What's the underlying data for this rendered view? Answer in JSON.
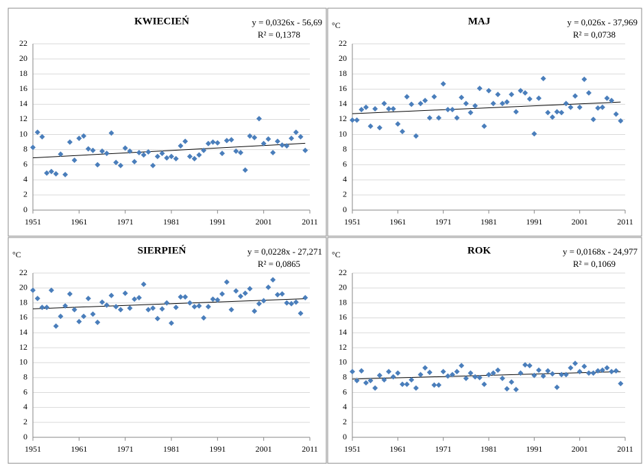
{
  "chart_data": [
    {
      "type": "scatter",
      "title": "KWIECIEŃ",
      "equation": "y = 0,0326x - 56,69",
      "r_squared": "R² = 0,1378",
      "trend": {
        "slope": 0.0326,
        "intercept": -56.69
      },
      "color": "#4a7ebb",
      "grid": true,
      "xlim": [
        1951,
        2011
      ],
      "ylim": [
        0,
        22
      ],
      "xticks": [
        1951,
        1961,
        1971,
        1981,
        1991,
        2001,
        2011
      ],
      "yticks": [
        0,
        2,
        4,
        6,
        8,
        10,
        12,
        14,
        16,
        18,
        20,
        22
      ],
      "x": [
        1951,
        1952,
        1953,
        1954,
        1955,
        1956,
        1957,
        1958,
        1959,
        1960,
        1961,
        1962,
        1963,
        1964,
        1965,
        1966,
        1967,
        1968,
        1969,
        1970,
        1971,
        1972,
        1973,
        1974,
        1975,
        1976,
        1977,
        1978,
        1979,
        1980,
        1981,
        1982,
        1983,
        1984,
        1985,
        1986,
        1987,
        1988,
        1989,
        1990,
        1991,
        1992,
        1993,
        1994,
        1995,
        1996,
        1997,
        1998,
        1999,
        2000,
        2001,
        2002,
        2003,
        2004,
        2005,
        2006,
        2007,
        2008,
        2009,
        2010
      ],
      "values": [
        8.3,
        10.3,
        9.7,
        4.9,
        5.1,
        4.8,
        7.4,
        4.7,
        9.0,
        6.6,
        9.5,
        9.8,
        8.1,
        7.9,
        6.0,
        7.8,
        7.5,
        10.2,
        6.3,
        5.9,
        8.2,
        7.8,
        6.4,
        7.6,
        7.3,
        7.7,
        5.9,
        7.1,
        7.5,
        6.9,
        7.1,
        6.8,
        8.5,
        9.1,
        7.1,
        6.8,
        7.3,
        7.9,
        8.8,
        9.0,
        8.9,
        7.5,
        9.2,
        9.3,
        7.8,
        7.6,
        5.3,
        9.8,
        9.6,
        12.1,
        8.8,
        9.4,
        7.6,
        9.1,
        8.6,
        8.5,
        9.5,
        10.3,
        9.7,
        7.9
      ]
    },
    {
      "type": "scatter",
      "title": "MAJ",
      "unit": "°C",
      "equation": "y = 0,026x - 37,969",
      "r_squared": "R² = 0,0738",
      "trend": {
        "slope": 0.026,
        "intercept": -37.969
      },
      "color": "#4a7ebb",
      "grid": true,
      "xlim": [
        1951,
        2011
      ],
      "ylim": [
        0,
        22
      ],
      "xticks": [
        1951,
        1961,
        1971,
        1981,
        1991,
        2001,
        2011
      ],
      "yticks": [
        0,
        2,
        4,
        6,
        8,
        10,
        12,
        14,
        16,
        18,
        20,
        22
      ],
      "x": [
        1951,
        1952,
        1953,
        1954,
        1955,
        1956,
        1957,
        1958,
        1959,
        1960,
        1961,
        1962,
        1963,
        1964,
        1965,
        1966,
        1967,
        1968,
        1969,
        1970,
        1971,
        1972,
        1973,
        1974,
        1975,
        1976,
        1977,
        1978,
        1979,
        1980,
        1981,
        1982,
        1983,
        1984,
        1985,
        1986,
        1987,
        1988,
        1989,
        1990,
        1991,
        1992,
        1993,
        1994,
        1995,
        1996,
        1997,
        1998,
        1999,
        2000,
        2001,
        2002,
        2003,
        2004,
        2005,
        2006,
        2007,
        2008,
        2009,
        2010
      ],
      "values": [
        11.9,
        11.9,
        13.3,
        13.6,
        11.1,
        13.4,
        10.9,
        14.1,
        13.4,
        13.4,
        11.4,
        10.4,
        15.0,
        14.0,
        9.8,
        14.1,
        14.5,
        12.2,
        15.0,
        12.2,
        16.7,
        13.3,
        13.3,
        12.2,
        14.9,
        14.1,
        12.9,
        13.8,
        16.1,
        11.1,
        15.8,
        14.1,
        15.3,
        14.1,
        14.3,
        15.3,
        13.0,
        15.8,
        15.5,
        14.7,
        10.1,
        14.8,
        17.4,
        12.9,
        12.3,
        13.0,
        12.9,
        14.1,
        13.6,
        15.1,
        13.6,
        17.3,
        15.5,
        12.0,
        13.5,
        13.6,
        14.8,
        14.5,
        12.7,
        11.8
      ]
    },
    {
      "type": "scatter",
      "title": "SIERPIEŃ",
      "unit": "°C",
      "equation": "y = 0,0228x - 27,271",
      "r_squared": "R² = 0,0865",
      "trend": {
        "slope": 0.0228,
        "intercept": -27.271
      },
      "color": "#4a7ebb",
      "grid": true,
      "xlim": [
        1951,
        2011
      ],
      "ylim": [
        0,
        22
      ],
      "xticks": [
        1951,
        1961,
        1971,
        1981,
        1991,
        2001,
        2011
      ],
      "yticks": [
        0,
        2,
        4,
        6,
        8,
        10,
        12,
        14,
        16,
        18,
        20,
        22
      ],
      "x": [
        1951,
        1952,
        1953,
        1954,
        1955,
        1956,
        1957,
        1958,
        1959,
        1960,
        1961,
        1962,
        1963,
        1964,
        1965,
        1966,
        1967,
        1968,
        1969,
        1970,
        1971,
        1972,
        1973,
        1974,
        1975,
        1976,
        1977,
        1978,
        1979,
        1980,
        1981,
        1982,
        1983,
        1984,
        1985,
        1986,
        1987,
        1988,
        1989,
        1990,
        1991,
        1992,
        1993,
        1994,
        1995,
        1996,
        1997,
        1998,
        1999,
        2000,
        2001,
        2002,
        2003,
        2004,
        2005,
        2006,
        2007,
        2008,
        2009,
        2010
      ],
      "values": [
        19.7,
        18.6,
        17.4,
        17.4,
        19.7,
        14.9,
        16.2,
        17.6,
        19.2,
        17.1,
        15.5,
        16.2,
        18.6,
        16.5,
        15.4,
        18.1,
        17.7,
        19.0,
        17.5,
        17.1,
        19.3,
        17.3,
        18.5,
        18.7,
        20.5,
        17.1,
        17.3,
        15.9,
        17.2,
        18.0,
        15.3,
        17.4,
        18.8,
        18.8,
        18.0,
        17.5,
        17.6,
        16.0,
        17.5,
        18.5,
        18.4,
        19.2,
        20.8,
        17.1,
        19.6,
        18.9,
        19.3,
        19.9,
        16.9,
        17.9,
        18.3,
        20.1,
        21.1,
        19.1,
        19.2,
        18.0,
        17.9,
        18.1,
        16.6,
        18.7
      ]
    },
    {
      "type": "scatter",
      "title": "ROK",
      "unit": "°C",
      "equation": "y = 0,0168x - 24,977",
      "r_squared": "R² = 0,1069",
      "trend": {
        "slope": 0.0168,
        "intercept": -24.977
      },
      "color": "#4a7ebb",
      "grid": true,
      "xlim": [
        1951,
        2011
      ],
      "ylim": [
        0,
        22
      ],
      "xticks": [
        1951,
        1961,
        1971,
        1981,
        1991,
        2001,
        2011
      ],
      "yticks": [
        0,
        2,
        4,
        6,
        8,
        10,
        12,
        14,
        16,
        18,
        20,
        22
      ],
      "x": [
        1951,
        1952,
        1953,
        1954,
        1955,
        1956,
        1957,
        1958,
        1959,
        1960,
        1961,
        1962,
        1963,
        1964,
        1965,
        1966,
        1967,
        1968,
        1969,
        1970,
        1971,
        1972,
        1973,
        1974,
        1975,
        1976,
        1977,
        1978,
        1979,
        1980,
        1981,
        1982,
        1983,
        1984,
        1985,
        1986,
        1987,
        1988,
        1989,
        1990,
        1991,
        1992,
        1993,
        1994,
        1995,
        1996,
        1997,
        1998,
        1999,
        2000,
        2001,
        2002,
        2003,
        2004,
        2005,
        2006,
        2007,
        2008,
        2009,
        2010
      ],
      "values": [
        8.8,
        7.6,
        8.9,
        7.3,
        7.6,
        6.6,
        8.3,
        7.7,
        8.8,
        8.1,
        8.6,
        7.1,
        7.1,
        7.7,
        6.6,
        8.4,
        9.3,
        8.7,
        7.0,
        7.0,
        8.8,
        8.2,
        8.4,
        8.8,
        9.6,
        7.9,
        8.6,
        8.1,
        8.0,
        7.1,
        8.4,
        8.6,
        9.0,
        7.9,
        6.5,
        7.4,
        6.4,
        8.6,
        9.7,
        9.6,
        8.3,
        9.0,
        8.2,
        8.9,
        8.5,
        6.7,
        8.4,
        8.4,
        9.3,
        9.9,
        8.8,
        9.5,
        8.6,
        8.6,
        8.9,
        9.0,
        9.3,
        8.8,
        8.9,
        7.2
      ]
    }
  ]
}
